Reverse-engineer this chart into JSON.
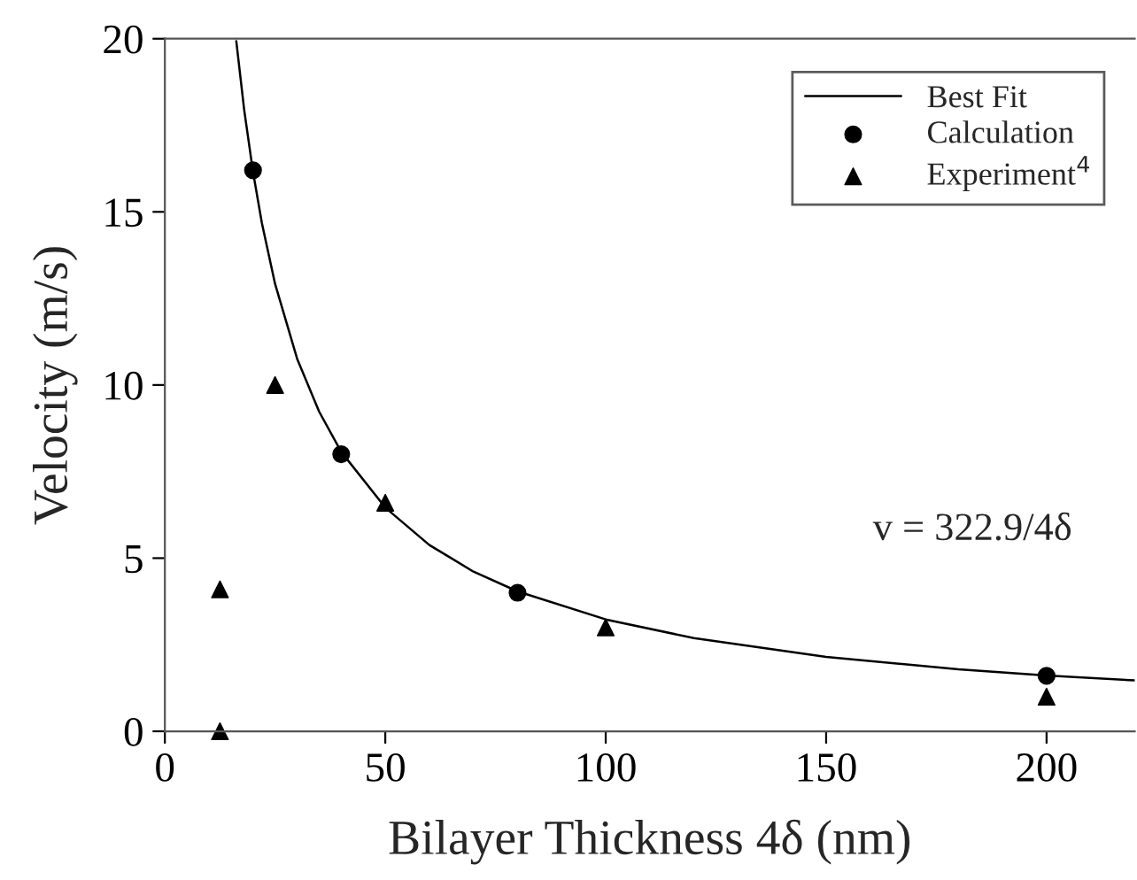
{
  "chart_data": {
    "type": "scatter",
    "xlabel": "Bilayer Thickness 4δ (nm)",
    "ylabel": "Velocity (m/s)",
    "xlim": [
      0,
      220
    ],
    "xticks": [
      0,
      50,
      100,
      150,
      200
    ],
    "ylim": [
      0,
      20
    ],
    "yticks": [
      0,
      5,
      10,
      15,
      20
    ],
    "grid": false,
    "legend": "top right",
    "series": [
      {
        "name": "Best Fit",
        "type": "line",
        "marker": "none",
        "line_style": "solid",
        "color": "#000000",
        "x": [
          16.2,
          18,
          20,
          22,
          25,
          30,
          35,
          40,
          50,
          60,
          70,
          80,
          100,
          120,
          150,
          180,
          200,
          220
        ],
        "values": [
          19.93,
          17.94,
          16.15,
          14.68,
          12.92,
          10.76,
          9.23,
          8.07,
          6.46,
          5.38,
          4.61,
          4.04,
          3.23,
          2.69,
          2.15,
          1.79,
          1.61,
          1.47
        ]
      },
      {
        "name": "Calculation",
        "marker": "circle",
        "color": "#000000",
        "x": [
          20,
          40,
          80,
          200
        ],
        "values": [
          16.2,
          8.0,
          4.0,
          1.6
        ]
      },
      {
        "name": "Experiment$^{4}$",
        "marker": "triangle",
        "color": "#000000",
        "x": [
          12.5,
          12.5,
          25,
          50,
          100,
          200
        ],
        "values": [
          0,
          4.1,
          10.0,
          6.6,
          3.0,
          1.0
        ]
      }
    ],
    "annotations": [
      "v = 322.9/4δ"
    ]
  }
}
